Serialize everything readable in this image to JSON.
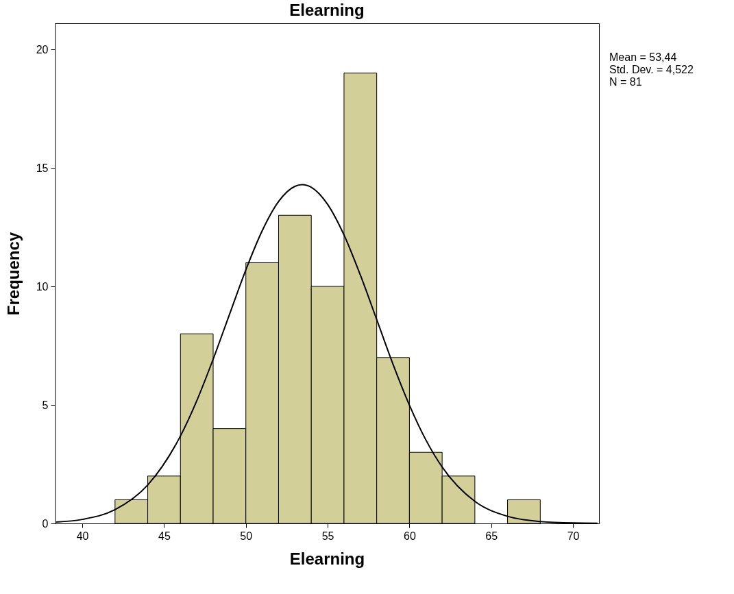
{
  "chart_data": {
    "type": "histogram",
    "title": "Elearning",
    "xlabel": "Elearning",
    "ylabel": "Frequency",
    "bins": [
      42,
      44,
      46,
      48,
      50,
      52,
      54,
      56,
      58,
      60,
      62,
      64,
      66,
      68
    ],
    "values": [
      1,
      2,
      8,
      4,
      11,
      13,
      10,
      19,
      7,
      3,
      2,
      0,
      1
    ],
    "color": "#d3cf98",
    "series": [
      {
        "type": "line",
        "color": "#000000",
        "x": [
          38.4,
          40,
          42,
          44,
          46,
          47,
          48,
          49,
          50,
          51,
          52,
          53,
          53.44,
          54,
          55,
          56,
          57,
          58,
          59,
          60,
          61,
          62,
          64,
          66,
          68,
          70,
          71.5
        ],
        "values": [
          0.06,
          0.17,
          0.58,
          1.62,
          3.69,
          5.18,
          6.93,
          8.82,
          10.7,
          12.35,
          13.58,
          14.22,
          14.29,
          14.18,
          13.46,
          12.17,
          10.48,
          8.6,
          6.71,
          4.99,
          3.53,
          2.38,
          0.93,
          0.3,
          0.08,
          0.02,
          0.01
        ]
      }
    ],
    "xlim": [
      38.32,
      71.59
    ],
    "xticks": [
      40,
      45,
      50,
      55,
      60,
      65,
      70
    ],
    "ylim": [
      0,
      21.1
    ],
    "yticks": [
      0,
      5,
      10,
      15,
      20
    ],
    "annotations": [
      "Mean = 53,44",
      "Std. Dev. = 4,522",
      "N = 81"
    ]
  }
}
